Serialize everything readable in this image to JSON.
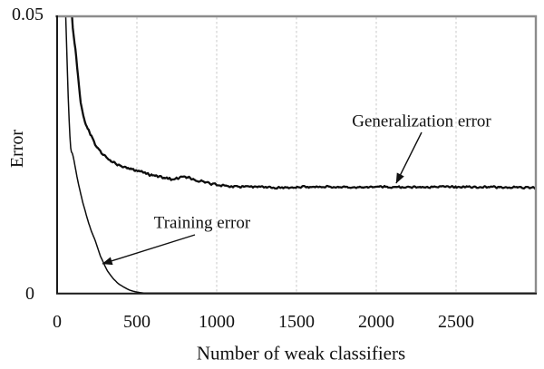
{
  "figure": {
    "y_axis_title": "Error",
    "y_axis_top_label": "0.05",
    "y_axis_bottom_label": "0",
    "x_axis_title": "Number of weak classifiers",
    "x_tick_labels": [
      "0",
      "500",
      "1000",
      "1500",
      "2000",
      "2500"
    ],
    "annotations": {
      "generalization": "Generalization error",
      "training": "Training error"
    },
    "colors": {
      "curve": "#0d0d0d",
      "axis_black": "#1a1a1a",
      "axis_gray": "#8c8c8c",
      "gridline": "#c9c9c9",
      "background": "#ffffff",
      "text": "#111111"
    }
  },
  "chart_data": {
    "type": "line",
    "title": "",
    "xlabel": "Number of weak classifiers",
    "ylabel": "Error",
    "xlim": [
      0,
      3000
    ],
    "ylim": [
      0,
      0.05
    ],
    "x_ticks": [
      0,
      500,
      1000,
      1500,
      2000,
      2500
    ],
    "y_ticks": [
      0,
      0.05
    ],
    "grid": "vertical-dashed-gridlines-at-x-ticks",
    "legend_position": "none (inline arrow annotations)",
    "series": [
      {
        "name": "Training error",
        "style": "smooth-thin-black",
        "points": [
          [
            30,
            0.075
          ],
          [
            54,
            0.05
          ],
          [
            80,
            0.0284
          ],
          [
            100,
            0.0248
          ],
          [
            130,
            0.0203
          ],
          [
            160,
            0.0165
          ],
          [
            204,
            0.0122
          ],
          [
            240,
            0.0095
          ],
          [
            271,
            0.0068
          ],
          [
            316,
            0.0041
          ],
          [
            370,
            0.0022
          ],
          [
            412,
            0.0013
          ],
          [
            460,
            0.0006
          ],
          [
            520,
            0.0002
          ],
          [
            600,
            5e-05
          ],
          [
            700,
            0
          ],
          [
            1200,
            0
          ],
          [
            2000,
            0
          ],
          [
            3000,
            0
          ]
        ]
      },
      {
        "name": "Generalization error",
        "style": "noisy-thick-black",
        "points": [
          [
            70,
            0.068
          ],
          [
            93,
            0.05
          ],
          [
            120,
            0.0425
          ],
          [
            148,
            0.0345
          ],
          [
            180,
            0.0305
          ],
          [
            244,
            0.0268
          ],
          [
            310,
            0.0245
          ],
          [
            400,
            0.023
          ],
          [
            500,
            0.0222
          ],
          [
            620,
            0.0212
          ],
          [
            720,
            0.0207
          ],
          [
            810,
            0.021
          ],
          [
            870,
            0.0204
          ],
          [
            1000,
            0.0197
          ],
          [
            1125,
            0.0192
          ],
          [
            1250,
            0.0193
          ],
          [
            1400,
            0.0191
          ],
          [
            1600,
            0.0193
          ],
          [
            1800,
            0.0192
          ],
          [
            2000,
            0.0193
          ],
          [
            2200,
            0.0192
          ],
          [
            2400,
            0.0193
          ],
          [
            2600,
            0.0192
          ],
          [
            2800,
            0.0192
          ],
          [
            3000,
            0.0191
          ]
        ]
      }
    ]
  }
}
